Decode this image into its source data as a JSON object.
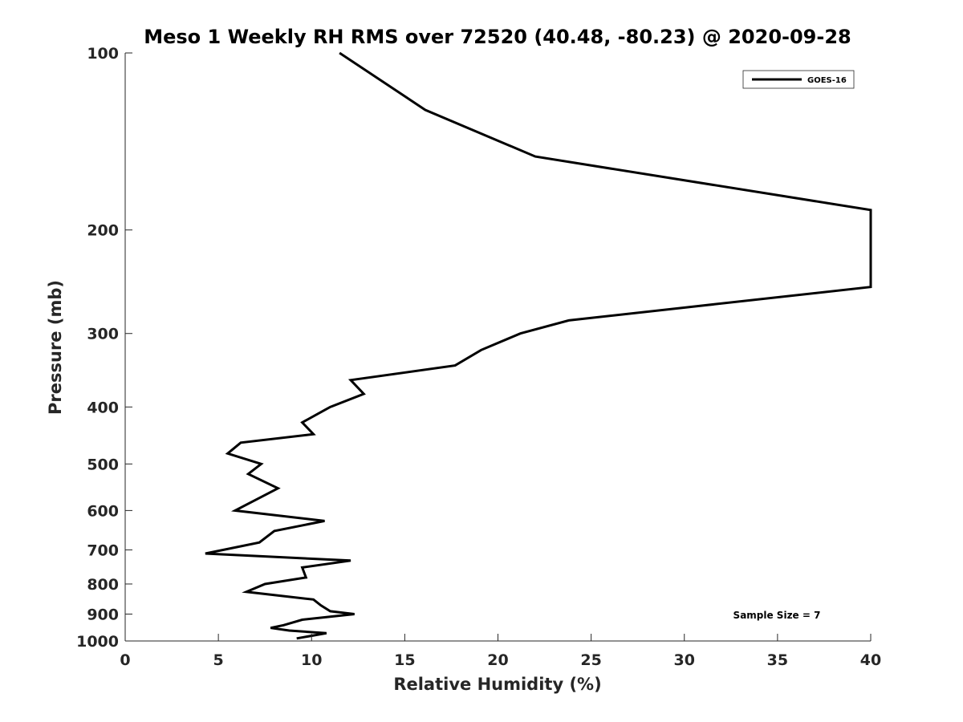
{
  "chart_data": {
    "type": "line",
    "title": "Meso 1 Weekly RH RMS over 72520 (40.48, -80.23) @ 2020-09-28",
    "xlabel": "Relative Humidity (%)",
    "ylabel": "Pressure (mb)",
    "xlim": [
      0,
      40
    ],
    "ylim": [
      100,
      1000
    ],
    "y_scale": "log",
    "y_reversed": true,
    "x_ticks": [
      0,
      5,
      10,
      15,
      20,
      25,
      30,
      35,
      40
    ],
    "y_ticks": [
      100,
      200,
      300,
      400,
      500,
      600,
      700,
      800,
      900,
      1000
    ],
    "grid": false,
    "legend": {
      "position": "top-right",
      "entries": [
        "GOES-16"
      ]
    },
    "annotation": "Sample Size = 7",
    "series": [
      {
        "name": "GOES-16",
        "color": "#000000",
        "points": [
          {
            "x": 11.5,
            "y": 100
          },
          {
            "x": 16.1,
            "y": 125
          },
          {
            "x": 22.0,
            "y": 150
          },
          {
            "x": 40.0,
            "y": 185
          },
          {
            "x": 40.0,
            "y": 250
          },
          {
            "x": 23.8,
            "y": 285
          },
          {
            "x": 21.2,
            "y": 300
          },
          {
            "x": 19.1,
            "y": 320
          },
          {
            "x": 17.7,
            "y": 340
          },
          {
            "x": 12.1,
            "y": 360
          },
          {
            "x": 12.8,
            "y": 380
          },
          {
            "x": 11.0,
            "y": 400
          },
          {
            "x": 9.5,
            "y": 425
          },
          {
            "x": 10.1,
            "y": 445
          },
          {
            "x": 6.2,
            "y": 460
          },
          {
            "x": 5.5,
            "y": 480
          },
          {
            "x": 7.3,
            "y": 500
          },
          {
            "x": 6.6,
            "y": 520
          },
          {
            "x": 8.2,
            "y": 550
          },
          {
            "x": 5.9,
            "y": 600
          },
          {
            "x": 10.7,
            "y": 625
          },
          {
            "x": 8.0,
            "y": 650
          },
          {
            "x": 7.2,
            "y": 680
          },
          {
            "x": 4.3,
            "y": 710
          },
          {
            "x": 12.1,
            "y": 730
          },
          {
            "x": 9.5,
            "y": 750
          },
          {
            "x": 9.7,
            "y": 780
          },
          {
            "x": 7.5,
            "y": 800
          },
          {
            "x": 6.5,
            "y": 825
          },
          {
            "x": 10.1,
            "y": 850
          },
          {
            "x": 10.5,
            "y": 870
          },
          {
            "x": 11.0,
            "y": 890
          },
          {
            "x": 12.3,
            "y": 900
          },
          {
            "x": 9.5,
            "y": 920
          },
          {
            "x": 8.5,
            "y": 940
          },
          {
            "x": 7.8,
            "y": 950
          },
          {
            "x": 8.8,
            "y": 960
          },
          {
            "x": 10.8,
            "y": 970
          },
          {
            "x": 9.2,
            "y": 990
          }
        ]
      }
    ]
  }
}
